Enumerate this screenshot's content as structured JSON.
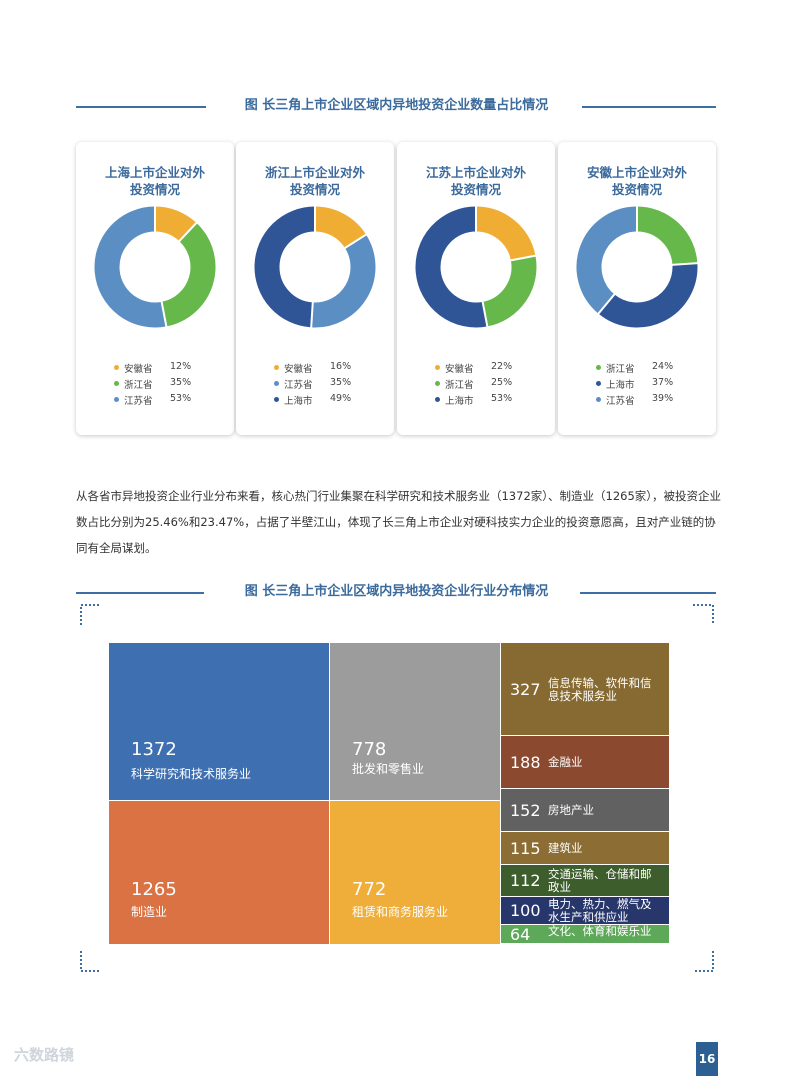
{
  "section1": {
    "title": "图 长三角上市企业区域内异地投资企业数量占比情况"
  },
  "chart_data": [
    {
      "type": "pie",
      "title": "上海上市企业对外投资情况",
      "slices": [
        {
          "label": "安徽省",
          "value": 12,
          "pct": "12%",
          "color": "#f0ad33"
        },
        {
          "label": "浙江省",
          "value": 35,
          "pct": "35%",
          "color": "#67b84a"
        },
        {
          "label": "江苏省",
          "value": 53,
          "pct": "53%",
          "color": "#5b8fc4"
        }
      ]
    },
    {
      "type": "pie",
      "title": "浙江上市企业对外投资情况",
      "slices": [
        {
          "label": "安徽省",
          "value": 16,
          "pct": "16%",
          "color": "#f0ad33"
        },
        {
          "label": "江苏省",
          "value": 35,
          "pct": "35%",
          "color": "#5b8fc4"
        },
        {
          "label": "上海市",
          "value": 49,
          "pct": "49%",
          "color": "#2f5597"
        }
      ]
    },
    {
      "type": "pie",
      "title": "江苏上市企业对外投资情况",
      "slices": [
        {
          "label": "安徽省",
          "value": 22,
          "pct": "22%",
          "color": "#f0ad33"
        },
        {
          "label": "浙江省",
          "value": 25,
          "pct": "25%",
          "color": "#67b84a"
        },
        {
          "label": "上海市",
          "value": 53,
          "pct": "53%",
          "color": "#2f5597"
        }
      ]
    },
    {
      "type": "pie",
      "title": "安徽上市企业对外投资情况",
      "slices": [
        {
          "label": "浙江省",
          "value": 24,
          "pct": "24%",
          "color": "#67b84a"
        },
        {
          "label": "上海市",
          "value": 37,
          "pct": "37%",
          "color": "#2f5597"
        },
        {
          "label": "江苏省",
          "value": 39,
          "pct": "39%",
          "color": "#5b8fc4"
        }
      ]
    },
    {
      "type": "treemap",
      "title": "图 长三角上市企业区域内异地投资企业行业分布情况",
      "items": [
        {
          "value": 1372,
          "label": "科学研究和技术服务业",
          "color": "#3e6fb0"
        },
        {
          "value": 1265,
          "label": "制造业",
          "color": "#da7244"
        },
        {
          "value": 778,
          "label": "批发和零售业",
          "color": "#9c9c9c"
        },
        {
          "value": 772,
          "label": "租赁和商务服务业",
          "color": "#efae3a"
        },
        {
          "value": 327,
          "label": "信息传输、软件和信息技术服务业",
          "color": "#866a32"
        },
        {
          "value": 188,
          "label": "金融业",
          "color": "#8b4a30"
        },
        {
          "value": 152,
          "label": "房地产业",
          "color": "#616161"
        },
        {
          "value": 115,
          "label": "建筑业",
          "color": "#8c6d33"
        },
        {
          "value": 112,
          "label": "交通运输、仓储和邮政业",
          "color": "#3d5e2c"
        },
        {
          "value": 100,
          "label": "电力、热力、燃气及水生产和供应业",
          "color": "#27376c"
        },
        {
          "value": 64,
          "label": "文化、体育和娱乐业",
          "color": "#5ea959"
        }
      ]
    }
  ],
  "paragraph": "从各省市异地投资企业行业分布来看，核心热门行业集聚在科学研究和技术服务业（1372家）、制造业（1265家），被投资企业数占比分别为25.46%和23.47%，占据了半壁江山，体现了长三角上市企业对硬科技实力企业的投资意愿高，且对产业链的协同有全局谋划。",
  "section2": {
    "title": "图 长三角上市企业区域内异地投资企业行业分布情况"
  },
  "page_number": "16",
  "watermark": "六数路镜"
}
